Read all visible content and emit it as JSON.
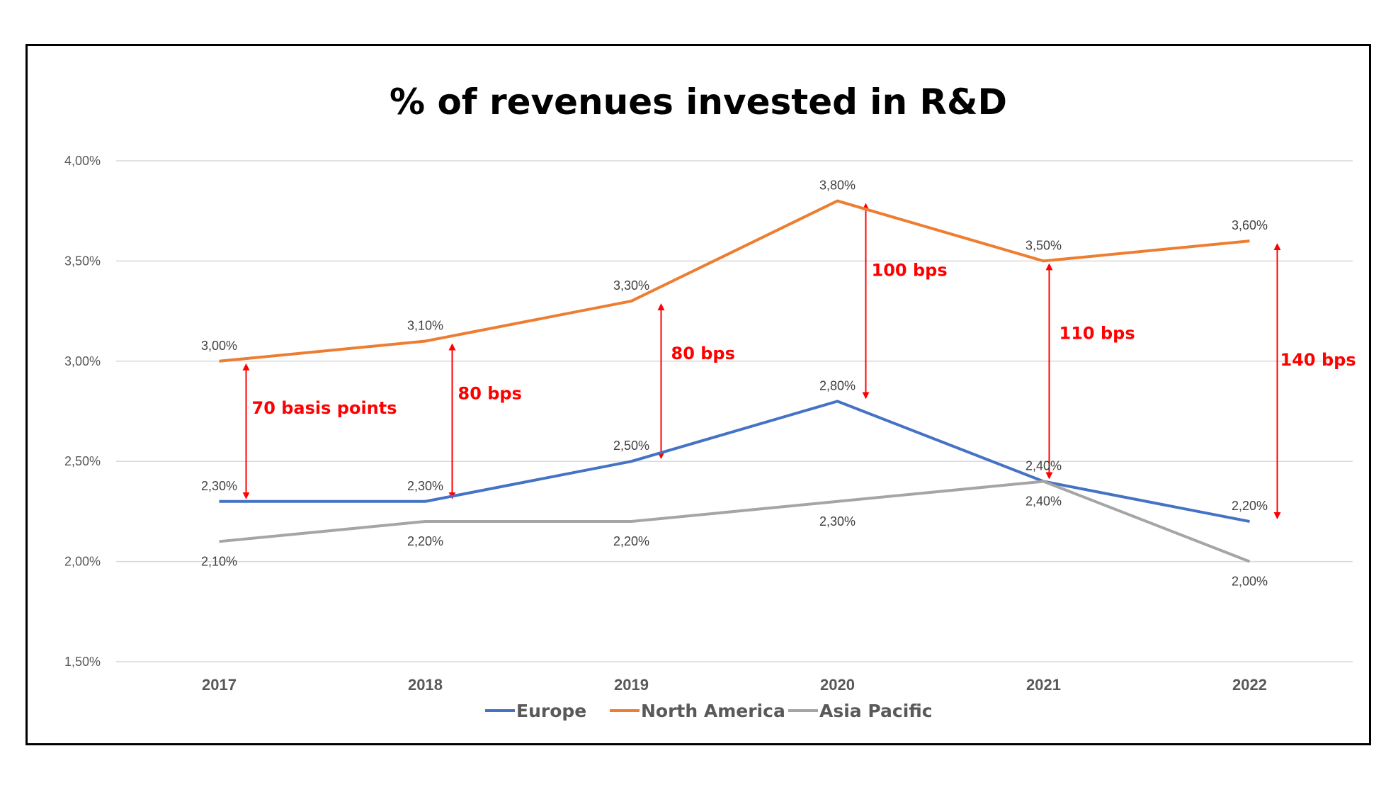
{
  "chart_data": {
    "type": "line",
    "title": "% of revenues invested in R&D",
    "categories": [
      "2017",
      "2018",
      "2019",
      "2020",
      "2021",
      "2022"
    ],
    "y_ticks": [
      "1,50%",
      "2,00%",
      "2,50%",
      "3,00%",
      "3,50%",
      "4,00%"
    ],
    "ylim": [
      1.5,
      4.0
    ],
    "grid": true,
    "legend_position": "bottom",
    "series": [
      {
        "name": "Europe",
        "color": "#4472c4",
        "values": [
          2.3,
          2.3,
          2.5,
          2.8,
          2.4,
          2.2
        ],
        "labels": [
          "2,30%",
          "2,30%",
          "2,50%",
          "2,80%",
          "2,40%",
          "2,20%"
        ]
      },
      {
        "name": "North America",
        "color": "#ed7d31",
        "values": [
          3.0,
          3.1,
          3.3,
          3.8,
          3.5,
          3.6
        ],
        "labels": [
          "3,00%",
          "3,10%",
          "3,30%",
          "3,80%",
          "3,50%",
          "3,60%"
        ]
      },
      {
        "name": "Asia Pacific",
        "color": "#a5a5a5",
        "values": [
          2.1,
          2.2,
          2.2,
          2.3,
          2.4,
          2.0
        ],
        "labels": [
          "2,10%",
          "2,20%",
          "2,20%",
          "2,30%",
          "2,40%",
          "2,00%"
        ]
      }
    ],
    "annotations": [
      {
        "text": "70 basis points",
        "category": "2017",
        "from": 3.0,
        "to": 2.3
      },
      {
        "text": "80 bps",
        "category": "2018",
        "from": 3.1,
        "to": 2.3
      },
      {
        "text": "80 bps",
        "category": "2019",
        "from": 3.3,
        "to": 2.5
      },
      {
        "text": "100 bps",
        "category": "2020",
        "from": 3.8,
        "to": 2.8
      },
      {
        "text": "110 bps",
        "category": "2021",
        "from": 3.5,
        "to": 2.4
      },
      {
        "text": "140 bps",
        "category": "2022",
        "from": 3.6,
        "to": 2.2
      }
    ],
    "annotation_color": "#ff0000"
  }
}
